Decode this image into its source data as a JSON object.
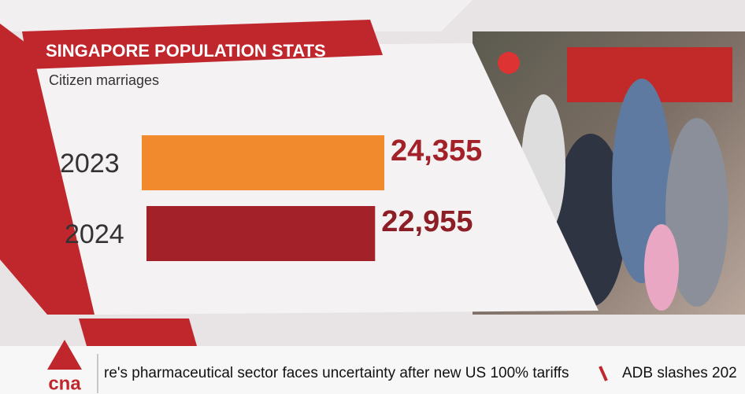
{
  "chart_data": {
    "type": "bar",
    "orientation": "horizontal",
    "title": "SINGAPORE POPULATION STATS",
    "subtitle": "Citizen marriages",
    "categories": [
      "2023",
      "2024"
    ],
    "values": [
      24355,
      22955
    ],
    "value_labels": [
      "24,355",
      "22,955"
    ],
    "colors": [
      "#f08a2c",
      "#a3222a"
    ]
  },
  "ticker": {
    "logo": "cna",
    "headlines": [
      "re's pharmaceutical sector faces uncertainty after new US 100% tariffs",
      "ADB slashes 202"
    ]
  }
}
